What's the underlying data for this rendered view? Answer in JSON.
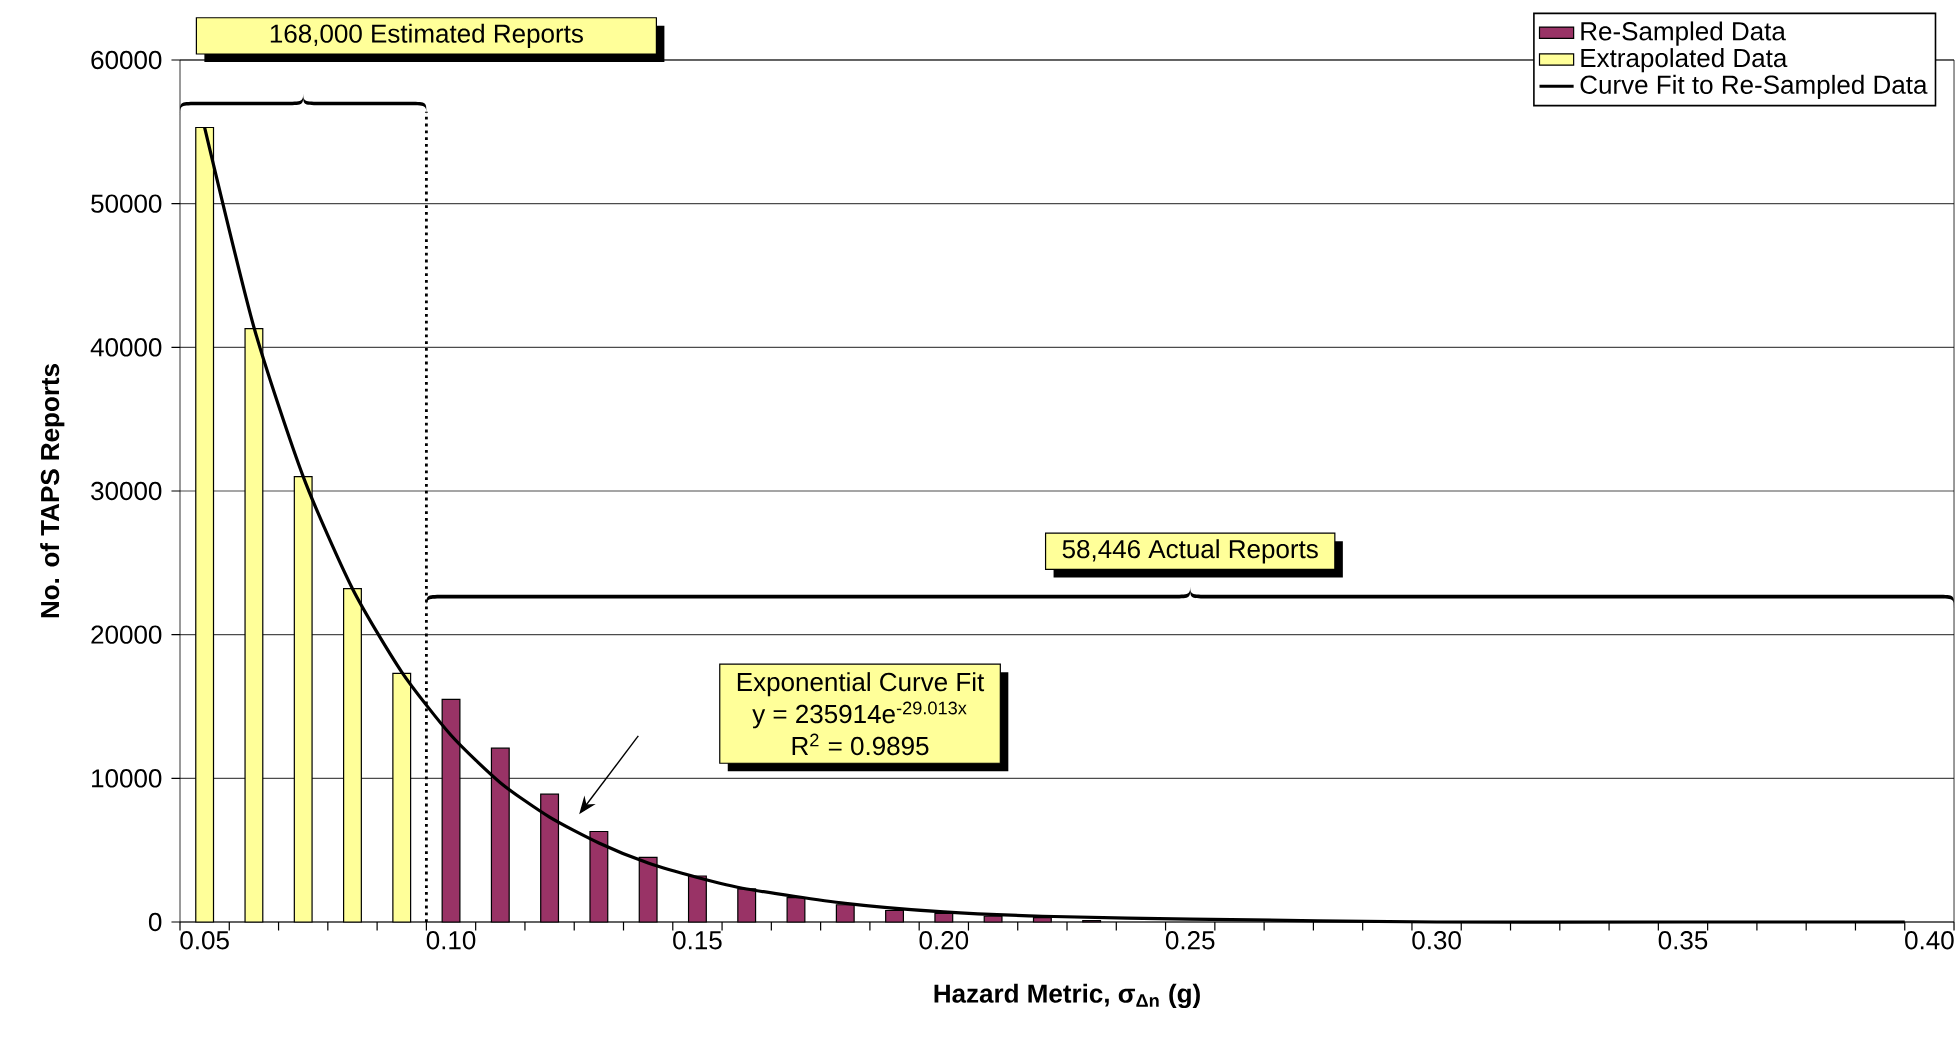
{
  "chart_data": {
    "type": "bar",
    "xlabel": "Hazard Metric, σ$_{Δn}$ (g)",
    "ylabel": "No. of TAPS Reports",
    "xlim": [
      0.045,
      0.405
    ],
    "xticks": [
      {
        "value": 0.05,
        "label": "0.05"
      },
      {
        "value": 0.1,
        "label": "0.10"
      },
      {
        "value": 0.15,
        "label": "0.15"
      },
      {
        "value": 0.2,
        "label": "0.20"
      },
      {
        "value": 0.25,
        "label": "0.25"
      },
      {
        "value": 0.3,
        "label": "0.30"
      },
      {
        "value": 0.35,
        "label": "0.35"
      },
      {
        "value": 0.4,
        "label": "0.40"
      },
      {
        "value": 0.045,
        "label": null
      },
      {
        "value": 0.055,
        "label": null
      },
      {
        "value": 0.065,
        "label": null
      },
      {
        "value": 0.075,
        "label": null
      },
      {
        "value": 0.085,
        "label": null
      },
      {
        "value": 0.095,
        "label": null
      },
      {
        "value": 0.105,
        "label": null
      },
      {
        "value": 0.115,
        "label": null
      },
      {
        "value": 0.125,
        "label": null
      },
      {
        "value": 0.135,
        "label": null
      },
      {
        "value": 0.145,
        "label": null
      },
      {
        "value": 0.155,
        "label": null
      },
      {
        "value": 0.165,
        "label": null
      },
      {
        "value": 0.175,
        "label": null
      },
      {
        "value": 0.185,
        "label": null
      },
      {
        "value": 0.195,
        "label": null
      },
      {
        "value": 0.205,
        "label": null
      },
      {
        "value": 0.215,
        "label": null
      },
      {
        "value": 0.225,
        "label": null
      },
      {
        "value": 0.235,
        "label": null
      },
      {
        "value": 0.245,
        "label": null
      },
      {
        "value": 0.255,
        "label": null
      },
      {
        "value": 0.265,
        "label": null
      },
      {
        "value": 0.275,
        "label": null
      },
      {
        "value": 0.285,
        "label": null
      },
      {
        "value": 0.295,
        "label": null
      },
      {
        "value": 0.305,
        "label": null
      },
      {
        "value": 0.315,
        "label": null
      },
      {
        "value": 0.325,
        "label": null
      },
      {
        "value": 0.335,
        "label": null
      },
      {
        "value": 0.345,
        "label": null
      },
      {
        "value": 0.355,
        "label": null
      },
      {
        "value": 0.365,
        "label": null
      },
      {
        "value": 0.375,
        "label": null
      },
      {
        "value": 0.385,
        "label": null
      },
      {
        "value": 0.395,
        "label": null
      },
      {
        "value": 0.405,
        "label": null
      }
    ],
    "ylim": [
      0,
      60000
    ],
    "yticks": [
      0,
      10000,
      20000,
      30000,
      40000,
      50000,
      60000
    ],
    "grid": "y",
    "legend": "top right",
    "series": [
      {
        "name": "Re-Sampled Data",
        "color": "#993366",
        "x": [
          0.1,
          0.11,
          0.12,
          0.13,
          0.14,
          0.15,
          0.16,
          0.17,
          0.18,
          0.19,
          0.2,
          0.21,
          0.22,
          0.23
        ],
        "values": [
          15500,
          12100,
          8900,
          6300,
          4500,
          3200,
          2300,
          1700,
          1200,
          800,
          600,
          400,
          300,
          100
        ]
      },
      {
        "name": "Extrapolated Data",
        "color": "#ffff99",
        "x": [
          0.05,
          0.06,
          0.07,
          0.08,
          0.09
        ],
        "values": [
          55300,
          41300,
          31000,
          23200,
          17300
        ]
      },
      {
        "name": "Curve Fit to Re-Sampled Data",
        "type": "line",
        "color": "#000000",
        "x": [
          0.05,
          0.06,
          0.07,
          0.08,
          0.09,
          0.1,
          0.11,
          0.12,
          0.13,
          0.14,
          0.15,
          0.16,
          0.18,
          0.2,
          0.22,
          0.25,
          0.3,
          0.35,
          0.395
        ],
        "values": [
          55300,
          41400,
          31000,
          23200,
          17400,
          13000,
          9700,
          7300,
          5500,
          4100,
          3100,
          2300,
          1300,
          700,
          400,
          200,
          0,
          0,
          0
        ]
      }
    ],
    "ref_lines": [
      {
        "axis": "x",
        "value": 0.095,
        "line_style": "dotted"
      }
    ],
    "annotations": [
      "168,000 Estimated Reports",
      "58,446 Actual Reports",
      "Exponential Curve Fit",
      "y = 235914e$^{-29.013x}$",
      "R$^{2}$ = 0.9895"
    ]
  }
}
